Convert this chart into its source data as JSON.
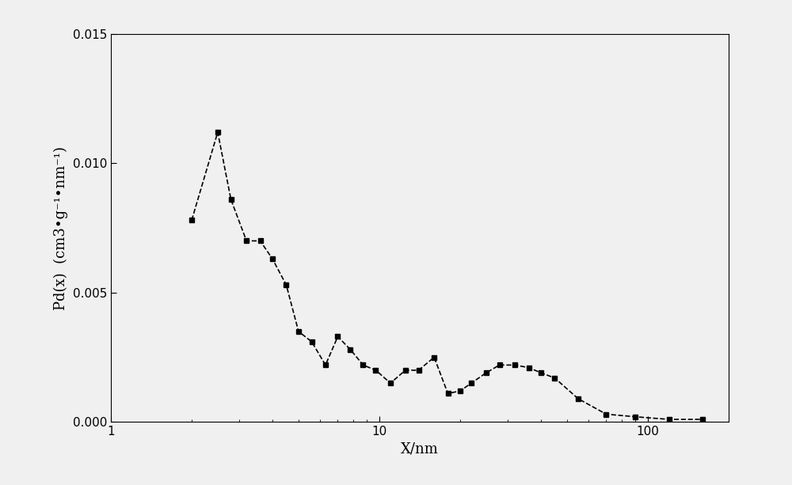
{
  "x": [
    2.0,
    2.5,
    2.8,
    3.2,
    3.6,
    4.0,
    4.5,
    5.0,
    5.6,
    6.3,
    7.0,
    7.8,
    8.7,
    9.7,
    11.0,
    12.5,
    14.0,
    16.0,
    18.0,
    20.0,
    22.0,
    25.0,
    28.0,
    32.0,
    36.0,
    40.0,
    45.0,
    55.0,
    70.0,
    90.0,
    120.0,
    160.0
  ],
  "y": [
    0.0078,
    0.0112,
    0.0086,
    0.007,
    0.007,
    0.0063,
    0.0053,
    0.0035,
    0.0031,
    0.0022,
    0.0033,
    0.0028,
    0.0022,
    0.002,
    0.0015,
    0.002,
    0.002,
    0.0025,
    0.0011,
    0.0012,
    0.0015,
    0.0019,
    0.0022,
    0.0022,
    0.0021,
    0.0019,
    0.0017,
    0.0009,
    0.0003,
    0.0002,
    0.0001,
    0.0001
  ],
  "xlabel": "X/nm",
  "ylabel": "Pd(x)  (cm3•g⁻¹•nm⁻¹)",
  "xlim": [
    1,
    200
  ],
  "ylim": [
    0,
    0.015
  ],
  "yticks": [
    0.0,
    0.005,
    0.01,
    0.015
  ],
  "xticks": [
    1,
    10,
    100
  ],
  "line_color": "#000000",
  "marker": "s",
  "marker_size": 5,
  "line_style": "--",
  "background_color": "#f0f0f0",
  "plot_bg_color": "#f0f0f0",
  "label_fontsize": 13,
  "tick_fontsize": 11
}
